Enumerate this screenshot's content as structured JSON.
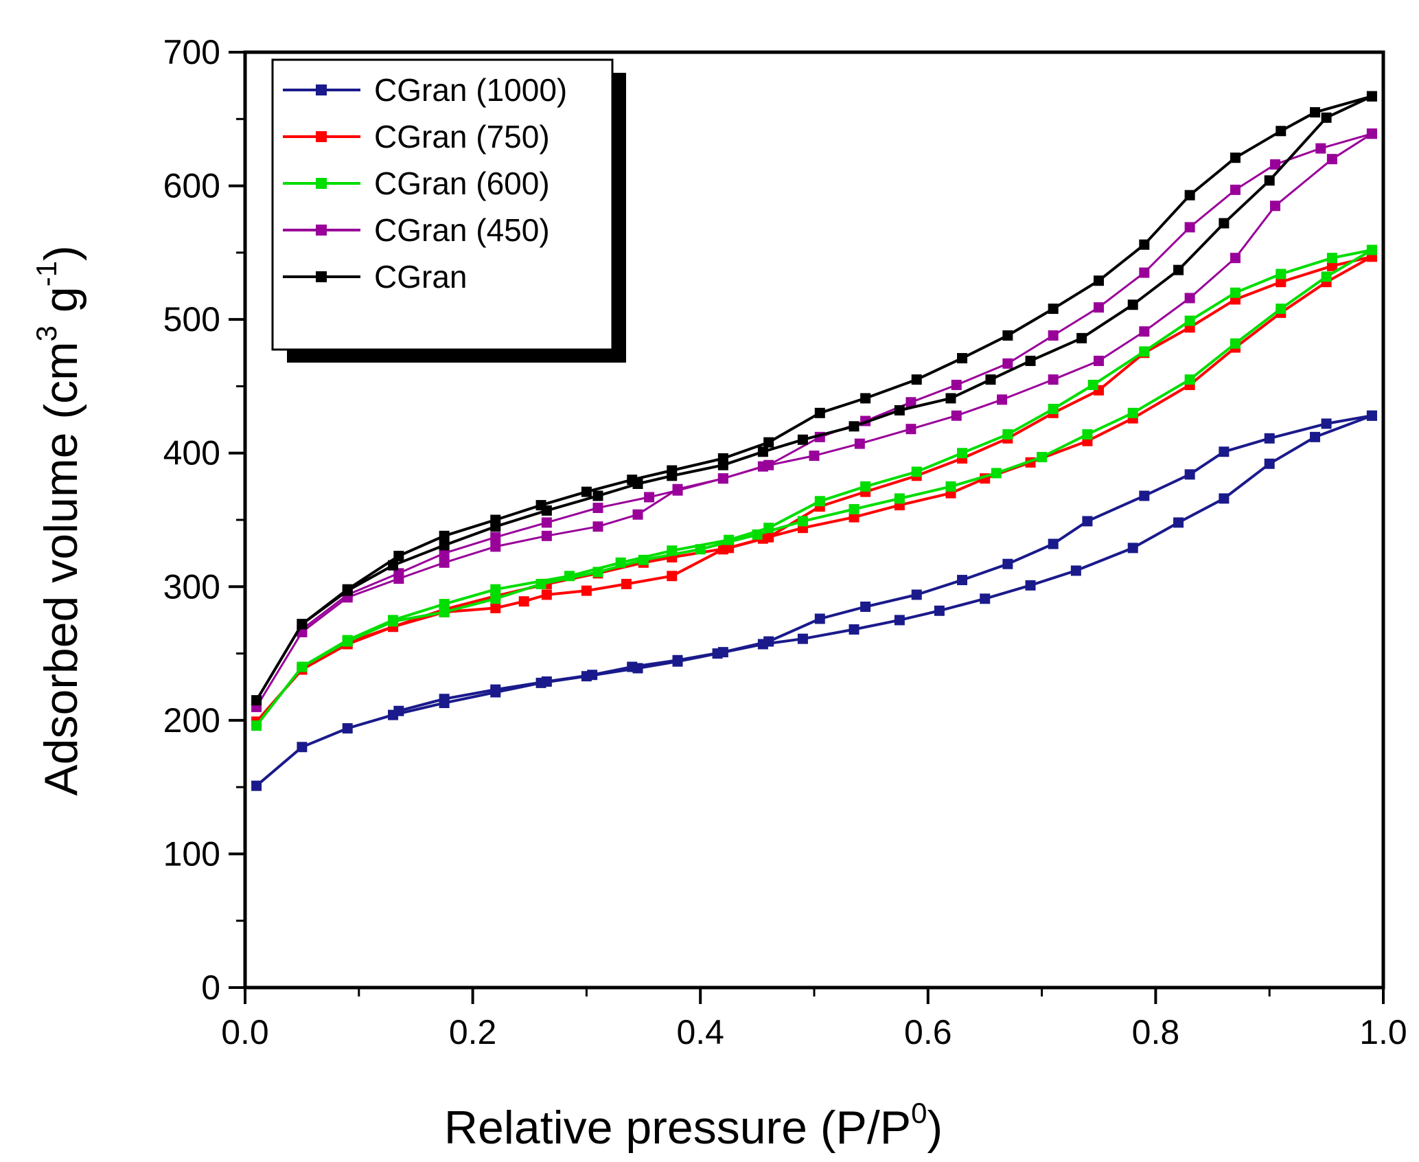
{
  "chart_data": {
    "type": "line",
    "title": "",
    "xlabel": "Relative pressure (P/P",
    "xlabel_sup": "0",
    "xlabel_end": ")",
    "ylabel": "Adsorbed volume (cm",
    "ylabel_sup1": "3",
    "ylabel_mid": " g",
    "ylabel_sup2": "-1",
    "ylabel_end": ")",
    "xlim": [
      0.0,
      1.0
    ],
    "ylim": [
      0,
      700
    ],
    "x_ticks": [
      "0.0",
      "0.2",
      "0.4",
      "0.6",
      "0.8",
      "1.0"
    ],
    "y_ticks": [
      "0",
      "100",
      "200",
      "300",
      "400",
      "500",
      "600",
      "700"
    ],
    "grid": false,
    "legend_position": "top-left",
    "series": [
      {
        "name": "CGran (1000)",
        "color": "#1a1a8c",
        "branches": [
          {
            "x": [
              0.01,
              0.05,
              0.09,
              0.13,
              0.175,
              0.22,
              0.26,
              0.3,
              0.345,
              0.38,
              0.415,
              0.455,
              0.49,
              0.535,
              0.575,
              0.61,
              0.65,
              0.69,
              0.73,
              0.78,
              0.82,
              0.86,
              0.9,
              0.94,
              0.99
            ],
            "y": [
              151,
              180,
              194,
              204,
              213,
              221,
              228,
              233,
              239,
              244,
              250,
              257,
              261,
              268,
              275,
              282,
              291,
              301,
              312,
              329,
              348,
              366,
              392,
              412,
              428
            ]
          },
          {
            "x": [
              0.99,
              0.95,
              0.9,
              0.86,
              0.83,
              0.79,
              0.74,
              0.71,
              0.67,
              0.63,
              0.59,
              0.545,
              0.505,
              0.46,
              0.42,
              0.38,
              0.34,
              0.305,
              0.265,
              0.22,
              0.175,
              0.135
            ],
            "y": [
              428,
              422,
              411,
              401,
              384,
              368,
              349,
              332,
              317,
              305,
              294,
              285,
              276,
              259,
              251,
              245,
              240,
              234,
              229,
              223,
              216,
              207
            ]
          }
        ]
      },
      {
        "name": "CGran (750)",
        "color": "#ff0000",
        "branches": [
          {
            "x": [
              0.01,
              0.05,
              0.09,
              0.13,
              0.175,
              0.22,
              0.245,
              0.265,
              0.3,
              0.335,
              0.375,
              0.42,
              0.455,
              0.49,
              0.535,
              0.575,
              0.62,
              0.65,
              0.69,
              0.74,
              0.78,
              0.83,
              0.87,
              0.91,
              0.95,
              0.99
            ],
            "y": [
              199,
              238,
              257,
              270,
              281,
              284,
              289,
              294,
              297,
              302,
              308,
              328,
              336,
              344,
              352,
              361,
              370,
              381,
              393,
              409,
              426,
              451,
              479,
              505,
              528,
              547
            ]
          },
          {
            "x": [
              0.99,
              0.955,
              0.91,
              0.87,
              0.83,
              0.79,
              0.75,
              0.71,
              0.67,
              0.63,
              0.59,
              0.545,
              0.505,
              0.46,
              0.425,
              0.375,
              0.35,
              0.31,
              0.265,
              0.22,
              0.175,
              0.13,
              0.09,
              0.05
            ],
            "y": [
              547,
              540,
              528,
              515,
              494,
              475,
              447,
              430,
              411,
              396,
              383,
              371,
              360,
              337,
              329,
              322,
              318,
              310,
              302,
              293,
              283,
              270,
              258,
              238
            ]
          }
        ]
      },
      {
        "name": "CGran (600)",
        "color": "#00dd00",
        "branches": [
          {
            "x": [
              0.01,
              0.05,
              0.09,
              0.13,
              0.175,
              0.22,
              0.26,
              0.31,
              0.35,
              0.4,
              0.45,
              0.49,
              0.535,
              0.575,
              0.62,
              0.66,
              0.7,
              0.74,
              0.78,
              0.83,
              0.87,
              0.91,
              0.95,
              0.99
            ],
            "y": [
              196,
              240,
              259,
              274,
              281,
              291,
              302,
              311,
              320,
              328,
              339,
              349,
              358,
              366,
              375,
              385,
              397,
              414,
              430,
              455,
              482,
              508,
              532,
              552
            ]
          },
          {
            "x": [
              0.99,
              0.955,
              0.91,
              0.87,
              0.83,
              0.79,
              0.745,
              0.71,
              0.67,
              0.63,
              0.59,
              0.545,
              0.505,
              0.46,
              0.425,
              0.375,
              0.33,
              0.285,
              0.22,
              0.175,
              0.13,
              0.09,
              0.05
            ],
            "y": [
              552,
              546,
              534,
              520,
              499,
              476,
              451,
              433,
              414,
              400,
              386,
              375,
              364,
              344,
              335,
              327,
              318,
              308,
              298,
              287,
              275,
              260,
              240
            ]
          }
        ]
      },
      {
        "name": "CGran (450)",
        "color": "#990099",
        "branches": [
          {
            "x": [
              0.01,
              0.05,
              0.09,
              0.135,
              0.175,
              0.22,
              0.265,
              0.31,
              0.345,
              0.38,
              0.42,
              0.455,
              0.5,
              0.54,
              0.585,
              0.625,
              0.665,
              0.71,
              0.75,
              0.79,
              0.83,
              0.87,
              0.905,
              0.955,
              0.99
            ],
            "y": [
              210,
              266,
              292,
              306,
              318,
              330,
              338,
              345,
              354,
              373,
              381,
              390,
              398,
              407,
              418,
              428,
              440,
              455,
              469,
              491,
              516,
              546,
              585,
              620,
              639
            ]
          },
          {
            "x": [
              0.99,
              0.945,
              0.905,
              0.87,
              0.83,
              0.79,
              0.75,
              0.71,
              0.67,
              0.625,
              0.585,
              0.545,
              0.505,
              0.46,
              0.42,
              0.38,
              0.355,
              0.31,
              0.265,
              0.22,
              0.175,
              0.135,
              0.09,
              0.05
            ],
            "y": [
              639,
              628,
              616,
              597,
              569,
              535,
              509,
              488,
              467,
              451,
              438,
              424,
              412,
              391,
              381,
              372,
              367,
              359,
              348,
              337,
              325,
              310,
              294,
              268
            ]
          }
        ]
      },
      {
        "name": "CGran",
        "color": "#000000",
        "branches": [
          {
            "x": [
              0.01,
              0.05,
              0.09,
              0.13,
              0.175,
              0.22,
              0.265,
              0.31,
              0.345,
              0.375,
              0.42,
              0.455,
              0.49,
              0.535,
              0.575,
              0.62,
              0.655,
              0.69,
              0.735,
              0.78,
              0.82,
              0.86,
              0.9,
              0.95,
              0.99
            ],
            "y": [
              215,
              272,
              297,
              316,
              331,
              345,
              357,
              368,
              377,
              383,
              391,
              401,
              410,
              420,
              432,
              441,
              455,
              469,
              486,
              511,
              537,
              572,
              604,
              651,
              667
            ]
          },
          {
            "x": [
              0.99,
              0.94,
              0.91,
              0.87,
              0.83,
              0.79,
              0.75,
              0.71,
              0.67,
              0.63,
              0.59,
              0.545,
              0.505,
              0.46,
              0.42,
              0.375,
              0.34,
              0.3,
              0.26,
              0.22,
              0.175,
              0.135,
              0.09,
              0.05
            ],
            "y": [
              667,
              655,
              641,
              621,
              593,
              556,
              529,
              508,
              488,
              471,
              455,
              441,
              430,
              408,
              396,
              387,
              380,
              371,
              361,
              350,
              338,
              323,
              298,
              272
            ]
          }
        ]
      }
    ]
  }
}
